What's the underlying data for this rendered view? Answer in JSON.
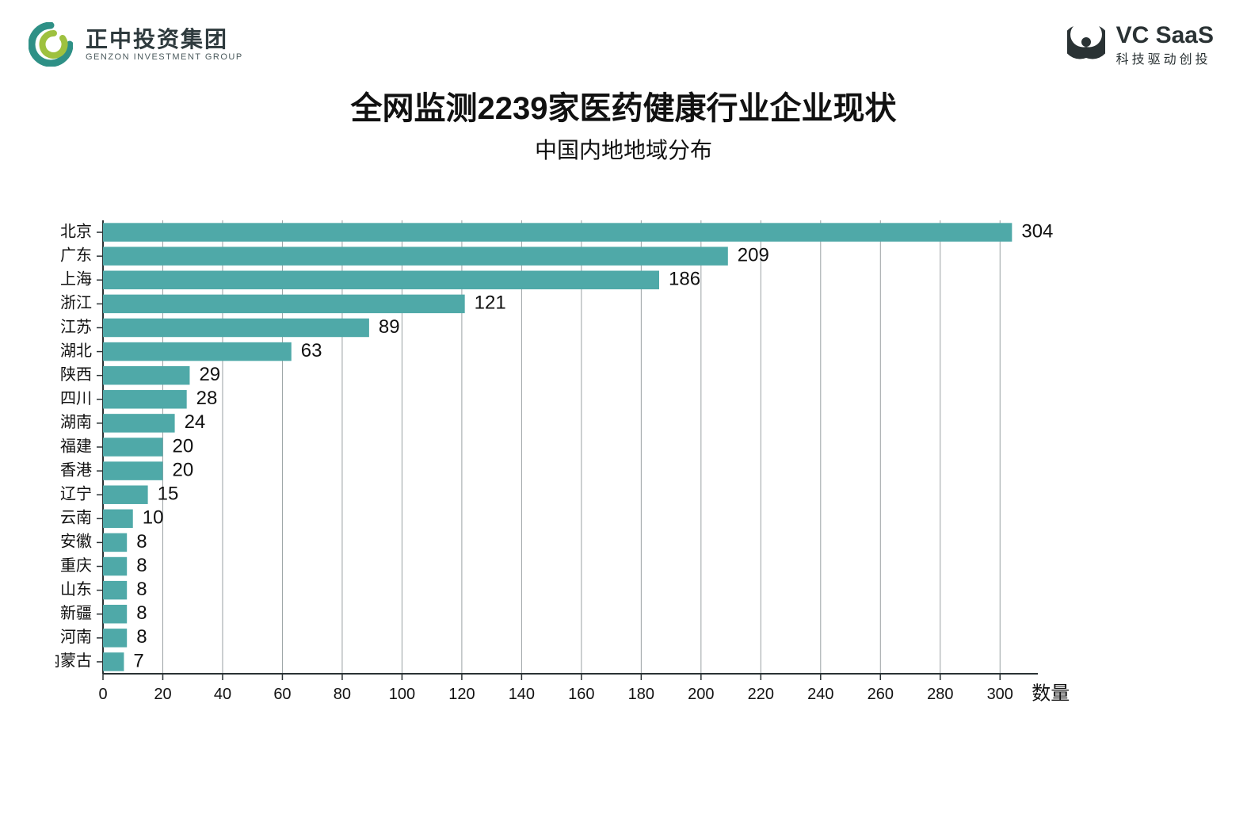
{
  "header": {
    "left_logo": {
      "name_cn": "正中投资集团",
      "name_en": "GENZON INVESTMENT GROUP",
      "mark_color_outer": "#2e9086",
      "mark_color_inner": "#9ec13f"
    },
    "right_logo": {
      "name_main": "VC SaaS",
      "name_sub": "科技驱动创投",
      "mark_color": "#2a3234"
    }
  },
  "title": "全网监测2239家医药健康行业企业现状",
  "subtitle": "中国内地地域分布",
  "chart": {
    "type": "bar-horizontal",
    "x_axis_label": "数量",
    "xlim": [
      0,
      310
    ],
    "xtick_step": 20,
    "xtick_max_labeled": 300,
    "bar_color": "#4fa9a8",
    "grid_color": "#9aa1a3",
    "axis_color": "#2a3234",
    "background_color": "#ffffff",
    "label_fontsize": 20,
    "value_fontsize": 24,
    "tick_fontsize": 20,
    "categories": [
      "北京",
      "广东",
      "上海",
      "浙江",
      "江苏",
      "湖北",
      "陕西",
      "四川",
      "湖南",
      "福建",
      "香港",
      "辽宁",
      "云南",
      "安徽",
      "重庆",
      "山东",
      "新疆",
      "河南",
      "内蒙古"
    ],
    "values": [
      304,
      209,
      186,
      121,
      89,
      63,
      29,
      28,
      24,
      20,
      20,
      15,
      10,
      8,
      8,
      8,
      8,
      8,
      7
    ]
  }
}
